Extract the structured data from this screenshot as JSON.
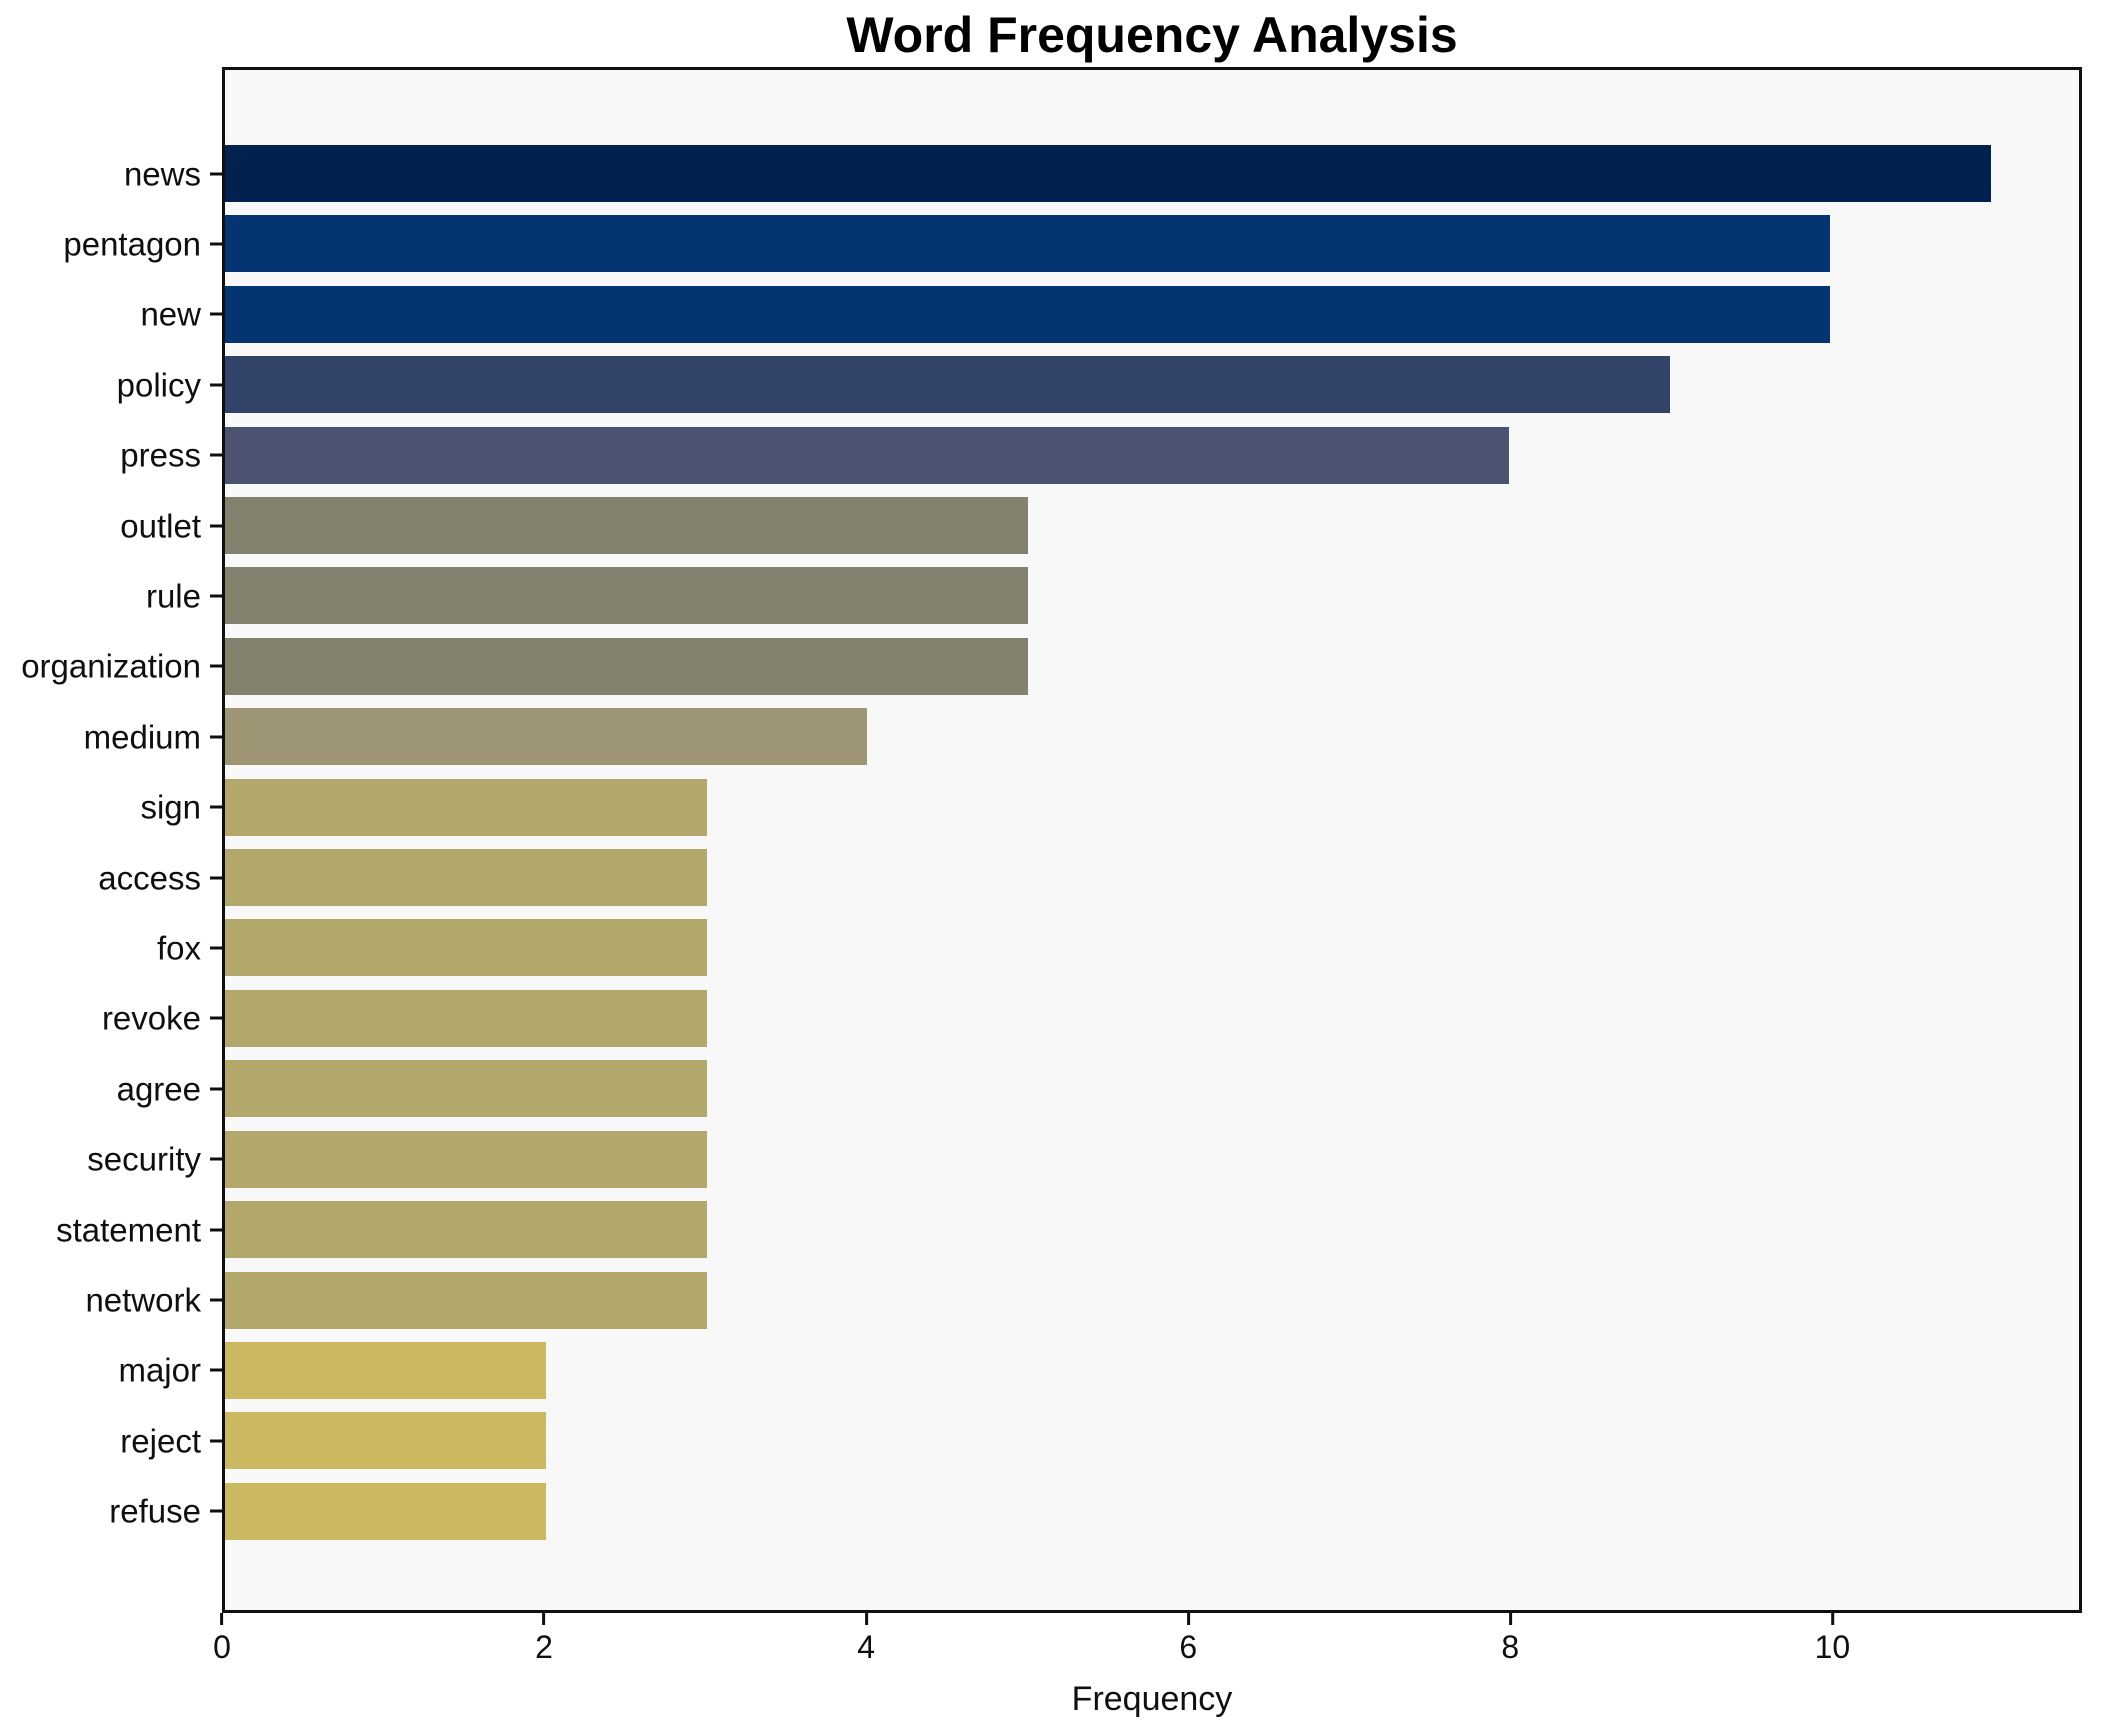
{
  "title": "Word Frequency Analysis",
  "chart_data": {
    "type": "bar",
    "orientation": "horizontal",
    "title": "Word Frequency Analysis",
    "xlabel": "Frequency",
    "ylabel": "",
    "grid": false,
    "legend": null,
    "xlim": [
      0,
      11.55
    ],
    "xticks": [
      0,
      2,
      4,
      6,
      8,
      10
    ],
    "plot_background": "#F8F8F8",
    "spine_color": "#0F0F0F",
    "categories": [
      "news",
      "pentagon",
      "new",
      "policy",
      "press",
      "outlet",
      "rule",
      "organization",
      "medium",
      "sign",
      "access",
      "fox",
      "revoke",
      "agree",
      "security",
      "statement",
      "network",
      "major",
      "reject",
      "refuse"
    ],
    "values": [
      11,
      10,
      10,
      9,
      8,
      5,
      5,
      5,
      4,
      3,
      3,
      3,
      3,
      3,
      3,
      3,
      3,
      2,
      2,
      2
    ],
    "bar_colors": [
      "#01224E",
      "#043471",
      "#043471",
      "#32436A",
      "#4C5370",
      "#85816F",
      "#85816F",
      "#85816F",
      "#9D9573",
      "#B2A86C",
      "#B2A86C",
      "#B2A86C",
      "#B2A86C",
      "#B2A86C",
      "#B2A86C",
      "#B2A86C",
      "#B2A86C",
      "#CBB962",
      "#CBB962",
      "#CBB962"
    ]
  }
}
